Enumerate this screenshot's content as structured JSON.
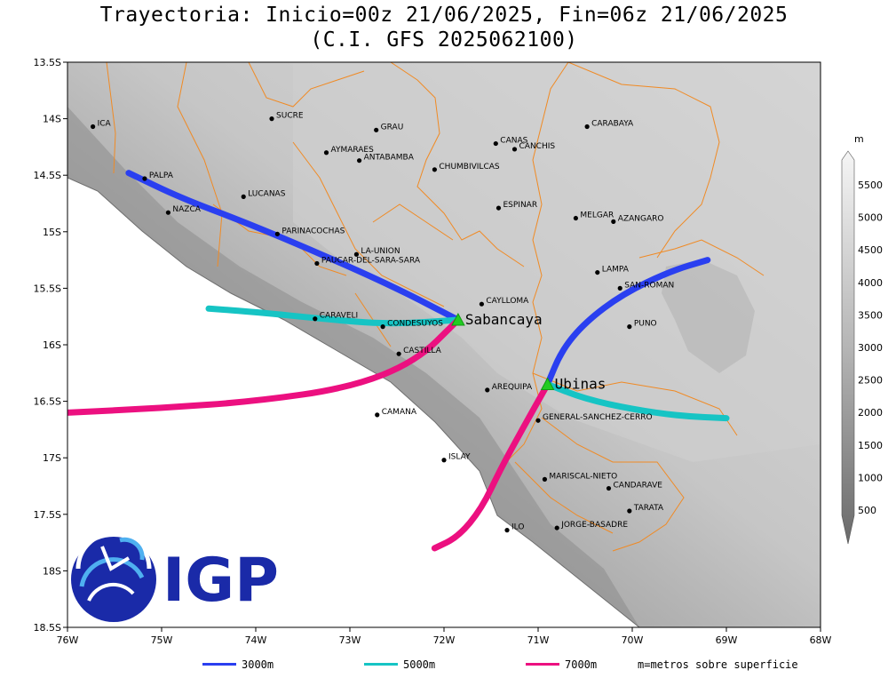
{
  "title": {
    "line1": "Trayectoria: Inicio=00z 21/06/2025, Fin=06z 21/06/2025",
    "line2": "(C.I. GFS 2025062100)"
  },
  "axes": {
    "lon_ticks": [
      "76W",
      "75W",
      "74W",
      "73W",
      "72W",
      "71W",
      "70W",
      "69W",
      "68W"
    ],
    "lat_ticks": [
      "13.5S",
      "14S",
      "14.5S",
      "15S",
      "15.5S",
      "16S",
      "16.5S",
      "17S",
      "17.5S",
      "18S",
      "18.5S"
    ]
  },
  "colorbar": {
    "unit": "m",
    "ticks": [
      "500",
      "1000",
      "1500",
      "2000",
      "2500",
      "3000",
      "3500",
      "4000",
      "4500",
      "5000",
      "5500"
    ]
  },
  "places": [
    {
      "name": "ICA",
      "lon": -75.73,
      "lat": -14.07
    },
    {
      "name": "SUCRE",
      "lon": -73.83,
      "lat": -14.0
    },
    {
      "name": "GRAU",
      "lon": -72.72,
      "lat": -14.1
    },
    {
      "name": "CANAS",
      "lon": -71.45,
      "lat": -14.22
    },
    {
      "name": "CANCHIS",
      "lon": -71.25,
      "lat": -14.27
    },
    {
      "name": "CARABAYA",
      "lon": -70.48,
      "lat": -14.07
    },
    {
      "name": "AYMARAES",
      "lon": -73.25,
      "lat": -14.3
    },
    {
      "name": "ANTABAMBA",
      "lon": -72.9,
      "lat": -14.37
    },
    {
      "name": "CHUMBIVILCAS",
      "lon": -72.1,
      "lat": -14.45
    },
    {
      "name": "PALPA",
      "lon": -75.18,
      "lat": -14.53
    },
    {
      "name": "LUCANAS",
      "lon": -74.13,
      "lat": -14.69
    },
    {
      "name": "NAZCA",
      "lon": -74.93,
      "lat": -14.83
    },
    {
      "name": "ESPINAR",
      "lon": -71.42,
      "lat": -14.79
    },
    {
      "name": "MELGAR",
      "lon": -70.6,
      "lat": -14.88
    },
    {
      "name": "AZANGARO",
      "lon": -70.2,
      "lat": -14.91
    },
    {
      "name": "PARINACOCHAS",
      "lon": -73.77,
      "lat": -15.02
    },
    {
      "name": "LA-UNION",
      "lon": -72.93,
      "lat": -15.2
    },
    {
      "name": "PAUCAR-DEL-SARA-SARA",
      "lon": -73.35,
      "lat": -15.28
    },
    {
      "name": "LAMPA",
      "lon": -70.37,
      "lat": -15.36
    },
    {
      "name": "SAN-ROMAN",
      "lon": -70.13,
      "lat": -15.5
    },
    {
      "name": "CAYLLOMA",
      "lon": -71.6,
      "lat": -15.64
    },
    {
      "name": "CARAVELI",
      "lon": -73.37,
      "lat": -15.77
    },
    {
      "name": "CONDESUYOS",
      "lon": -72.65,
      "lat": -15.84
    },
    {
      "name": "PUNO",
      "lon": -70.03,
      "lat": -15.84
    },
    {
      "name": "CASTILLA",
      "lon": -72.48,
      "lat": -16.08
    },
    {
      "name": "AREQUIPA",
      "lon": -71.54,
      "lat": -16.4
    },
    {
      "name": "GENERAL-SANCHEZ-CERRO",
      "lon": -71.0,
      "lat": -16.67
    },
    {
      "name": "CAMANA",
      "lon": -72.71,
      "lat": -16.62
    },
    {
      "name": "ISLAY",
      "lon": -72.0,
      "lat": -17.02
    },
    {
      "name": "MARISCAL-NIETO",
      "lon": -70.93,
      "lat": -17.19
    },
    {
      "name": "CANDARAVE",
      "lon": -70.25,
      "lat": -17.27
    },
    {
      "name": "TARATA",
      "lon": -70.03,
      "lat": -17.47
    },
    {
      "name": "ILO",
      "lon": -71.33,
      "lat": -17.64
    },
    {
      "name": "JORGE-BASADRE",
      "lon": -70.8,
      "lat": -17.62
    }
  ],
  "volcanoes": [
    {
      "name": "Sabancaya",
      "lon": -71.85,
      "lat": -15.78
    },
    {
      "name": "Ubinas",
      "lon": -70.9,
      "lat": -16.35
    }
  ],
  "trajectories": [
    {
      "level": "3000m",
      "color": "#2a3ff0",
      "points": [
        [
          -71.85,
          -15.78
        ],
        [
          -72.5,
          -15.5
        ],
        [
          -73.3,
          -15.2
        ],
        [
          -74.1,
          -14.92
        ],
        [
          -74.8,
          -14.7
        ],
        [
          -75.35,
          -14.48
        ]
      ]
    },
    {
      "level": "5000m",
      "color": "#16c4c4",
      "points": [
        [
          -71.85,
          -15.78
        ],
        [
          -72.6,
          -15.82
        ],
        [
          -73.3,
          -15.77
        ],
        [
          -74.0,
          -15.71
        ],
        [
          -74.5,
          -15.68
        ]
      ]
    },
    {
      "level": "7000m",
      "color": "#ec1080",
      "points": [
        [
          -71.85,
          -15.78
        ],
        [
          -72.3,
          -16.15
        ],
        [
          -73.0,
          -16.38
        ],
        [
          -74.0,
          -16.5
        ],
        [
          -75.0,
          -16.56
        ],
        [
          -76.0,
          -16.6
        ]
      ]
    },
    {
      "level": "3000m",
      "color": "#2a3ff0",
      "points": [
        [
          -70.9,
          -16.35
        ],
        [
          -70.75,
          -16.05
        ],
        [
          -70.5,
          -15.8
        ],
        [
          -70.1,
          -15.55
        ],
        [
          -69.6,
          -15.35
        ],
        [
          -69.2,
          -15.25
        ]
      ]
    },
    {
      "level": "5000m",
      "color": "#16c4c4",
      "points": [
        [
          -70.9,
          -16.35
        ],
        [
          -70.5,
          -16.48
        ],
        [
          -70.0,
          -16.57
        ],
        [
          -69.5,
          -16.63
        ],
        [
          -69.0,
          -16.65
        ]
      ]
    },
    {
      "level": "7000m",
      "color": "#ec1080",
      "points": [
        [
          -70.9,
          -16.35
        ],
        [
          -71.15,
          -16.72
        ],
        [
          -71.4,
          -17.1
        ],
        [
          -71.6,
          -17.45
        ],
        [
          -71.85,
          -17.7
        ],
        [
          -72.1,
          -17.8
        ]
      ]
    }
  ],
  "legend": [
    {
      "label": "3000m",
      "color": "#2a3ff0"
    },
    {
      "label": "5000m",
      "color": "#16c4c4"
    },
    {
      "label": "7000m",
      "color": "#ec1080"
    }
  ],
  "legend_note": "m=metros sobre superficie",
  "logo_text": "IGP"
}
